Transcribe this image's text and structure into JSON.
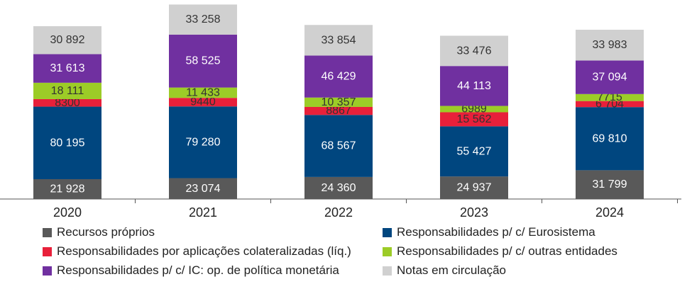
{
  "chart_data": {
    "type": "bar",
    "stacked": true,
    "categories": [
      "2020",
      "2021",
      "2022",
      "2023",
      "2024"
    ],
    "series": [
      {
        "name": "Recursos próprios",
        "color": "#595959",
        "values": [
          21928,
          23074,
          24360,
          24937,
          31799
        ],
        "labels": [
          "21 928",
          "23 074",
          "24 360",
          "24 937",
          "31 799"
        ]
      },
      {
        "name": "Responsabilidades p/ c/ Eurosistema",
        "color": "#00467f",
        "values": [
          80195,
          79280,
          68567,
          55427,
          69810
        ],
        "labels": [
          "80 195",
          "79 280",
          "68 567",
          "55 427",
          "69 810"
        ]
      },
      {
        "name": "Responsabilidades por aplicações colateralizadas (líq.)",
        "color": "#e8203a",
        "values": [
          8300,
          9440,
          8867,
          15562,
          6704
        ],
        "labels": [
          "8300",
          "9440",
          "8867",
          "15 562",
          "6 704"
        ]
      },
      {
        "name": "Responsabilidades p/ c/ outras entidades",
        "color": "#9ccc27",
        "values": [
          18111,
          11433,
          10357,
          6989,
          7715
        ],
        "labels": [
          "18 111",
          "11 433",
          "10 357",
          "6989",
          "7715"
        ]
      },
      {
        "name": "Responsabilidades p/ c/ IC: op. de política monetária",
        "color": "#7030a0",
        "values": [
          31613,
          58525,
          46429,
          44113,
          37094
        ],
        "labels": [
          "31 613",
          "58 525",
          "46 429",
          "44 113",
          "37 094"
        ]
      },
      {
        "name": "Notas em circulação",
        "color": "#d0d0d0",
        "values": [
          30892,
          33258,
          33854,
          33476,
          33983
        ],
        "labels": [
          "30 892",
          "33 258",
          "33 854",
          "33 476",
          "33 983"
        ]
      }
    ],
    "label_colors": [
      "#ffffff",
      "#ffffff",
      "#333333",
      "#333333",
      "#ffffff",
      "#333333"
    ],
    "ylim": [
      0,
      220000
    ],
    "grid": false,
    "legend_position": "bottom"
  }
}
